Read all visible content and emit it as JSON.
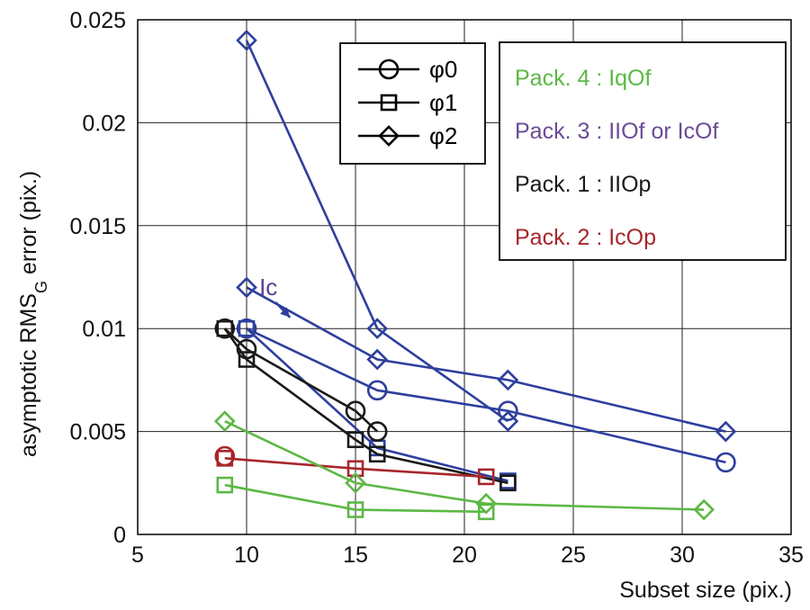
{
  "chart_data": {
    "type": "line",
    "title": "",
    "xlabel": "Subset size (pix.)",
    "ylabel_main": "asymptotic RMS",
    "ylabel_sub": "G",
    "ylabel_tail": " error (pix.)",
    "xlim": [
      5,
      35
    ],
    "ylim": [
      0,
      0.025
    ],
    "xticks": [
      5,
      10,
      15,
      20,
      25,
      30,
      35
    ],
    "xtick_labels": [
      "5",
      "10",
      "15",
      "20",
      "25",
      "30",
      "35"
    ],
    "yticks": [
      0,
      0.005,
      0.01,
      0.015,
      0.02,
      0.025
    ],
    "ytick_labels": [
      "0",
      "0.005",
      "0.01",
      "0.015",
      "0.02",
      "0.025"
    ],
    "grid": true,
    "colors": {
      "pack1": "#1a1a1a",
      "pack2": "#a8262b",
      "pack3": "#2e3f9e",
      "pack4": "#5cb845",
      "ic_label": "#5a3f8f"
    },
    "marker_legend": [
      {
        "label": "φ0",
        "marker": "circle"
      },
      {
        "label": "φ1",
        "marker": "square"
      },
      {
        "label": "φ2",
        "marker": "diamond"
      }
    ],
    "pack_legend": [
      {
        "label": "Pack. 4 : IqOf",
        "color": "#5cb845"
      },
      {
        "label": "Pack. 3 : IIOf or IcOf",
        "color": "#6a4c96"
      },
      {
        "label": "Pack. 1 : IIOp",
        "color": "#1a1a1a"
      },
      {
        "label": "Pack. 2 : IcOp",
        "color": "#a8262b"
      }
    ],
    "annotation": {
      "text": "Ic",
      "at": [
        11,
        0.0125
      ],
      "points_to": [
        12,
        0.0115
      ]
    },
    "series": [
      {
        "pack": "pack3",
        "marker": "diamond",
        "x": [
          10,
          16,
          22
        ],
        "y": [
          0.024,
          0.01,
          0.0055
        ]
      },
      {
        "pack": "pack3",
        "marker": "diamond",
        "x": [
          10,
          16,
          22,
          32
        ],
        "y": [
          0.012,
          0.0085,
          0.0075,
          0.005
        ]
      },
      {
        "pack": "pack3",
        "marker": "circle",
        "x": [
          10,
          16,
          22,
          32
        ],
        "y": [
          0.01,
          0.007,
          0.006,
          0.0035
        ]
      },
      {
        "pack": "pack3",
        "marker": "square",
        "x": [
          10,
          16,
          22
        ],
        "y": [
          0.01,
          0.0042,
          0.0026
        ]
      },
      {
        "pack": "pack1",
        "marker": "circle",
        "x": [
          9,
          10,
          15,
          16
        ],
        "y": [
          0.01,
          0.009,
          0.006,
          0.005
        ]
      },
      {
        "pack": "pack1",
        "marker": "square",
        "x": [
          9,
          10,
          15,
          16,
          22
        ],
        "y": [
          0.01,
          0.0085,
          0.0046,
          0.0039,
          0.0025
        ]
      },
      {
        "pack": "pack2",
        "marker": "circle",
        "x": [
          9
        ],
        "y": [
          0.0038
        ]
      },
      {
        "pack": "pack2",
        "marker": "square",
        "x": [
          9,
          15,
          21
        ],
        "y": [
          0.0037,
          0.0032,
          0.0028
        ]
      },
      {
        "pack": "pack4",
        "marker": "diamond",
        "x": [
          9,
          15,
          21,
          31
        ],
        "y": [
          0.0055,
          0.0025,
          0.0015,
          0.0012
        ]
      },
      {
        "pack": "pack4",
        "marker": "square",
        "x": [
          9,
          15,
          21
        ],
        "y": [
          0.0024,
          0.0012,
          0.0011
        ]
      }
    ]
  }
}
